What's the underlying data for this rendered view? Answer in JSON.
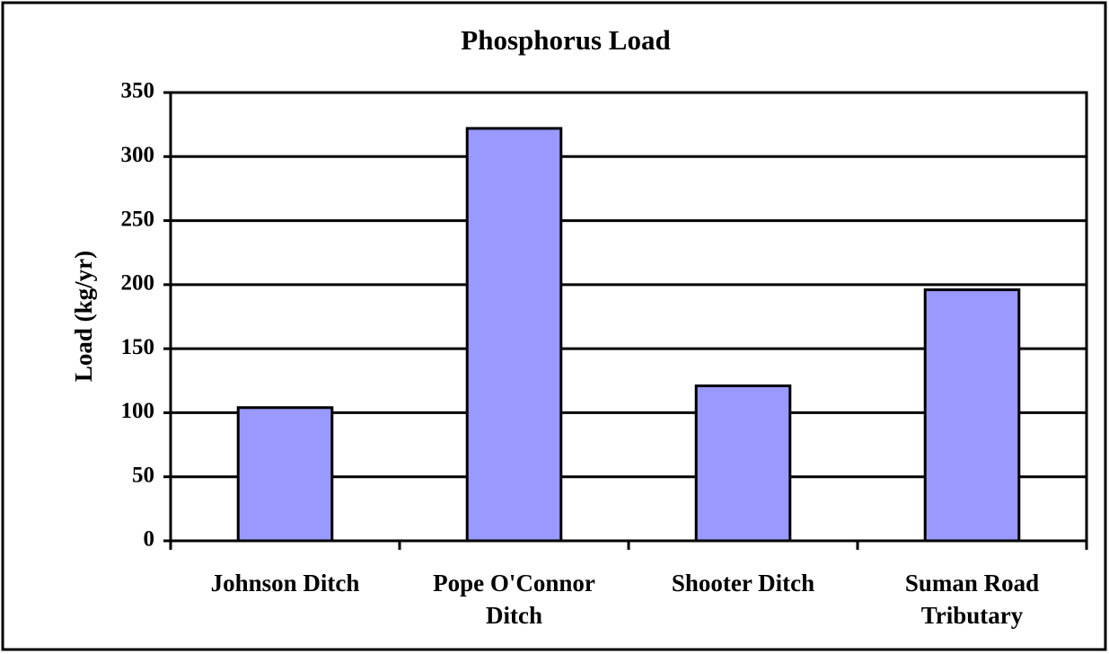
{
  "chart_data": {
    "type": "bar",
    "title": "Phosphorus Load",
    "y_label": "Load (kg/yr)",
    "categories": [
      "Johnson Ditch",
      "Pope O'Connor Ditch",
      "Shooter Ditch",
      "Suman Road Tributary"
    ],
    "values": [
      104,
      322,
      121,
      196
    ],
    "color": "#9999ff",
    "ylim": [
      0,
      350
    ],
    "yticks": [
      0,
      50,
      100,
      150,
      200,
      250,
      300,
      350
    ],
    "grid": true
  }
}
